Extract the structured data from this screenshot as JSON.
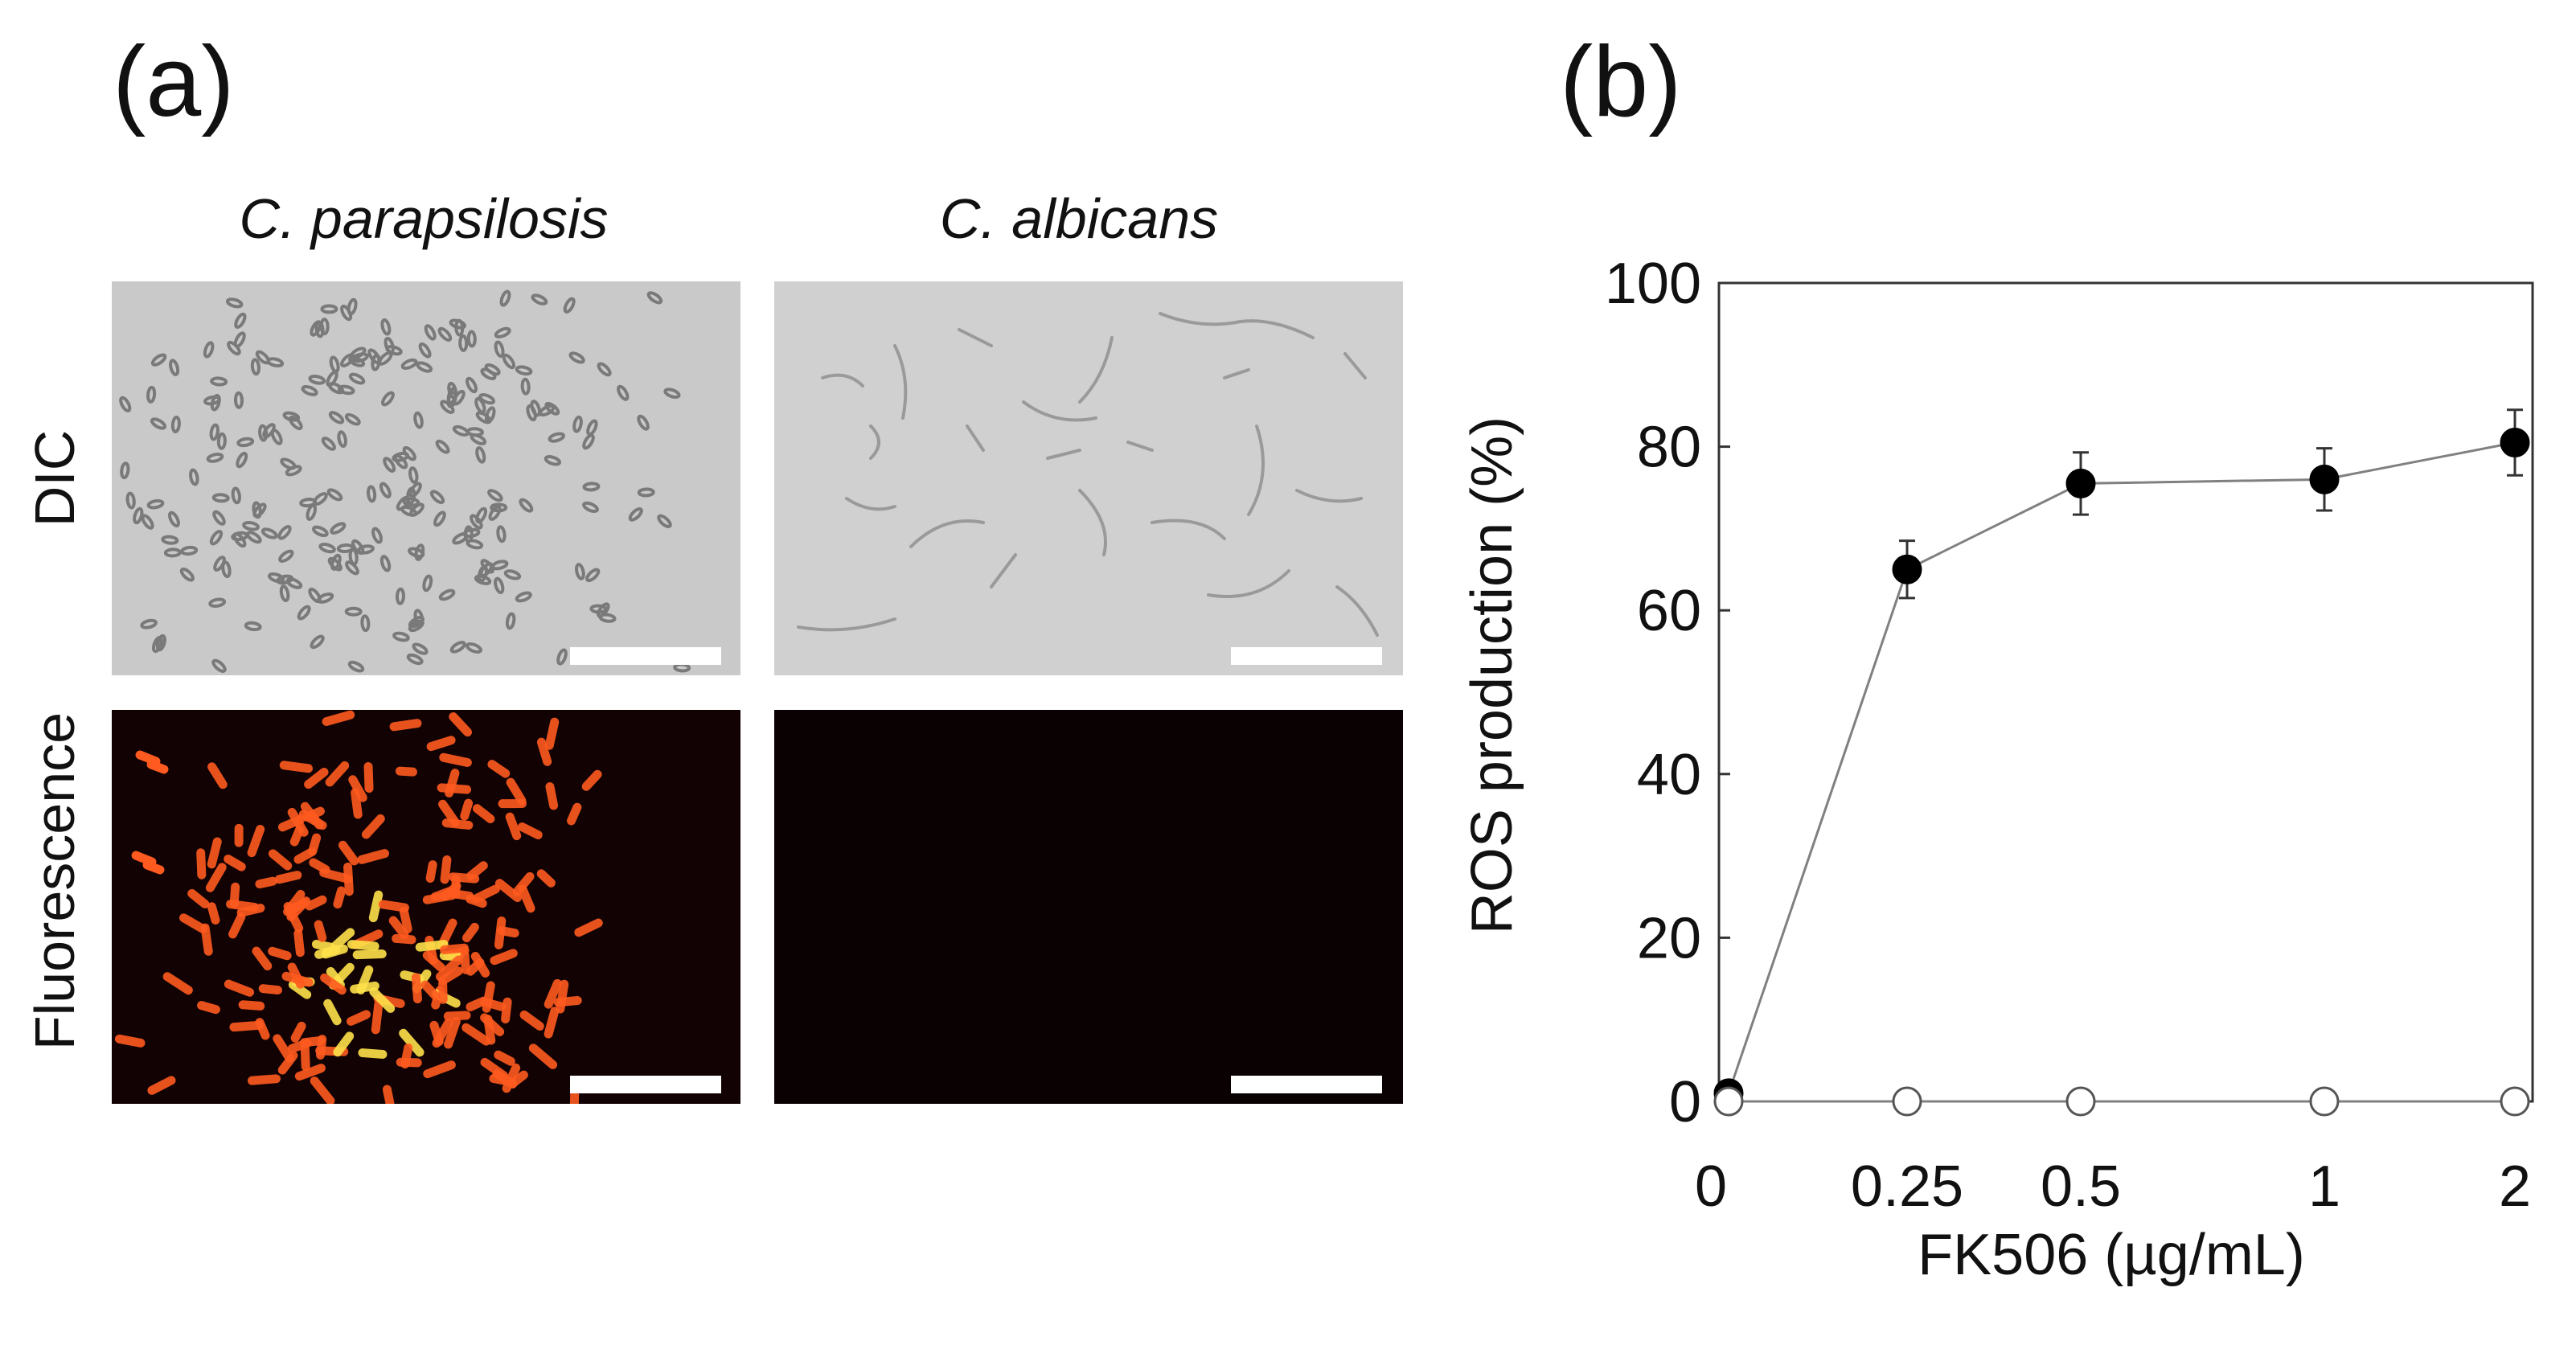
{
  "figure": {
    "panel_a_label": "(a)",
    "panel_b_label": "(b)",
    "columns": [
      "C. parapsilosis",
      "C. albicans"
    ],
    "rows": [
      "DIC",
      "Fluorescence"
    ]
  },
  "micrographs": [
    {
      "name": "dic-c-parapsilosis",
      "kind": "DIC",
      "background": "#c9c9c9"
    },
    {
      "name": "dic-c-albicans",
      "kind": "DIC",
      "background": "#d0d0d0"
    },
    {
      "name": "fluorescence-c-parapsilosis",
      "kind": "Fluorescence",
      "background": "#120203"
    },
    {
      "name": "fluorescence-c-albicans",
      "kind": "Fluorescence",
      "background": "#0a0102"
    }
  ],
  "colors": {
    "marker_filled": "#000000",
    "marker_open": "#ffffff",
    "line": "#808080",
    "fluor_hot": "#ffe24a",
    "fluor_warm": "#ff5a1f"
  },
  "chart_data": {
    "type": "line",
    "title": "",
    "xlabel": "FK506 (µg/mL)",
    "ylabel": "ROS production (%)",
    "categories": [
      "0",
      "0.25",
      "0.5",
      "1",
      "2"
    ],
    "ylim": [
      0,
      100
    ],
    "yticks": [
      0,
      20,
      40,
      60,
      80,
      100
    ],
    "grid": false,
    "legend": "none",
    "series": [
      {
        "marker": "filled-circle",
        "values": [
          1,
          65,
          75.5,
          76,
          80.5
        ],
        "errors": [
          0,
          3.5,
          3.8,
          3.8,
          4.0
        ]
      },
      {
        "marker": "open-circle",
        "values": [
          0,
          0,
          0,
          0,
          0
        ],
        "errors": [
          0,
          0,
          0,
          0,
          0
        ]
      }
    ]
  }
}
